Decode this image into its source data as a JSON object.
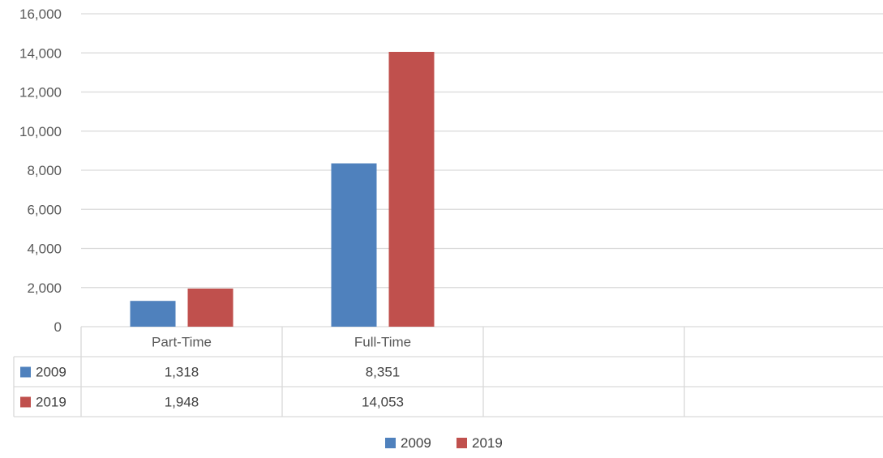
{
  "chart_data": {
    "type": "bar",
    "categories": [
      "Part-Time",
      "Full-Time",
      "",
      ""
    ],
    "series": [
      {
        "name": "2009",
        "color": "#4F81BD",
        "values": [
          1318,
          8351,
          null,
          null
        ],
        "labels": [
          "1,318",
          "8,351",
          "",
          ""
        ]
      },
      {
        "name": "2019",
        "color": "#C0504D",
        "values": [
          1948,
          14053,
          null,
          null
        ],
        "labels": [
          "1,948",
          "14,053",
          "",
          ""
        ]
      }
    ],
    "ylim": [
      0,
      16000
    ],
    "yticks": [
      0,
      2000,
      4000,
      6000,
      8000,
      10000,
      12000,
      14000,
      16000
    ],
    "ytick_labels": [
      "0",
      "2,000",
      "4,000",
      "6,000",
      "8,000",
      "10,000",
      "12,000",
      "14,000",
      "16,000"
    ],
    "grid": true,
    "legend_position": "bottom",
    "data_table": true,
    "title": "",
    "xlabel": "",
    "ylabel": ""
  }
}
